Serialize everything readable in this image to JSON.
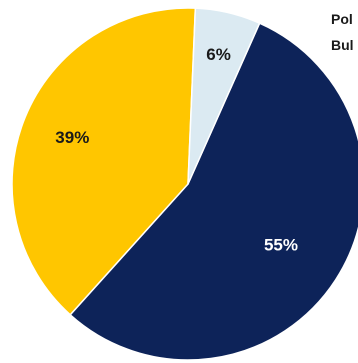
{
  "colors": {
    "navy": "#0d2359",
    "gold": "#ffc600",
    "light_blue": "#dbeaf2"
  },
  "legend": {
    "item_1": "Pol",
    "item_2": "Bul"
  },
  "chart_data": {
    "type": "pie",
    "title": "",
    "start_angle_deg": 24,
    "direction": "clockwise",
    "slices": [
      {
        "label": "55%",
        "value": 55,
        "color": "#0d2359"
      },
      {
        "label": "39%",
        "value": 39,
        "color": "#ffc600"
      },
      {
        "label": "6%",
        "value": 6,
        "color": "#dbeaf2"
      }
    ],
    "legend_entries": [
      "Pol",
      "Bul"
    ],
    "legend_placement": "top-right (cut off)"
  }
}
